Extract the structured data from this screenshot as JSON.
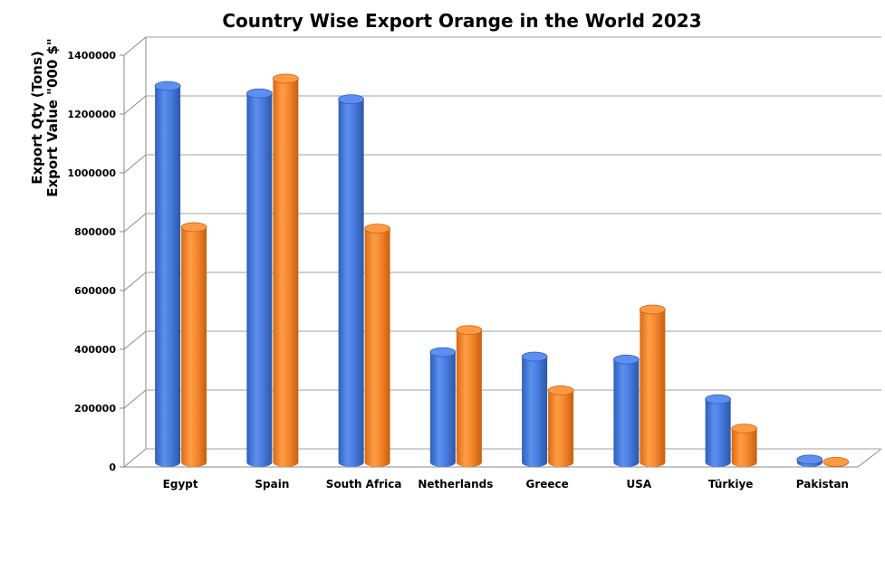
{
  "chart_data": {
    "type": "bar",
    "title": "Country Wise Export Orange in the World 2023",
    "ylabel_line1": "Export Qty (Tons)",
    "ylabel_line2": "Export Value \"000 $\"",
    "xlabel": "",
    "categories": [
      "Egypt",
      "Spain",
      "South Africa",
      "Netherlands",
      "Greece",
      "USA",
      "Türkiye",
      "Pakistan"
    ],
    "series": [
      {
        "values": [
          1280000,
          1255000,
          1235000,
          375000,
          360000,
          350000,
          215000,
          10000
        ],
        "color": "#4a7ee0"
      },
      {
        "values": [
          800000,
          1305000,
          795000,
          450000,
          245000,
          520000,
          115000,
          2000
        ],
        "color": "#f5892f"
      }
    ],
    "ylim": [
      0,
      1400000
    ],
    "yticks": [
      "0",
      "200000",
      "400000",
      "600000",
      "800000",
      "1000000",
      "1200000",
      "1400000"
    ],
    "grid": true,
    "legend": "none",
    "style": "3d-cylinder"
  }
}
